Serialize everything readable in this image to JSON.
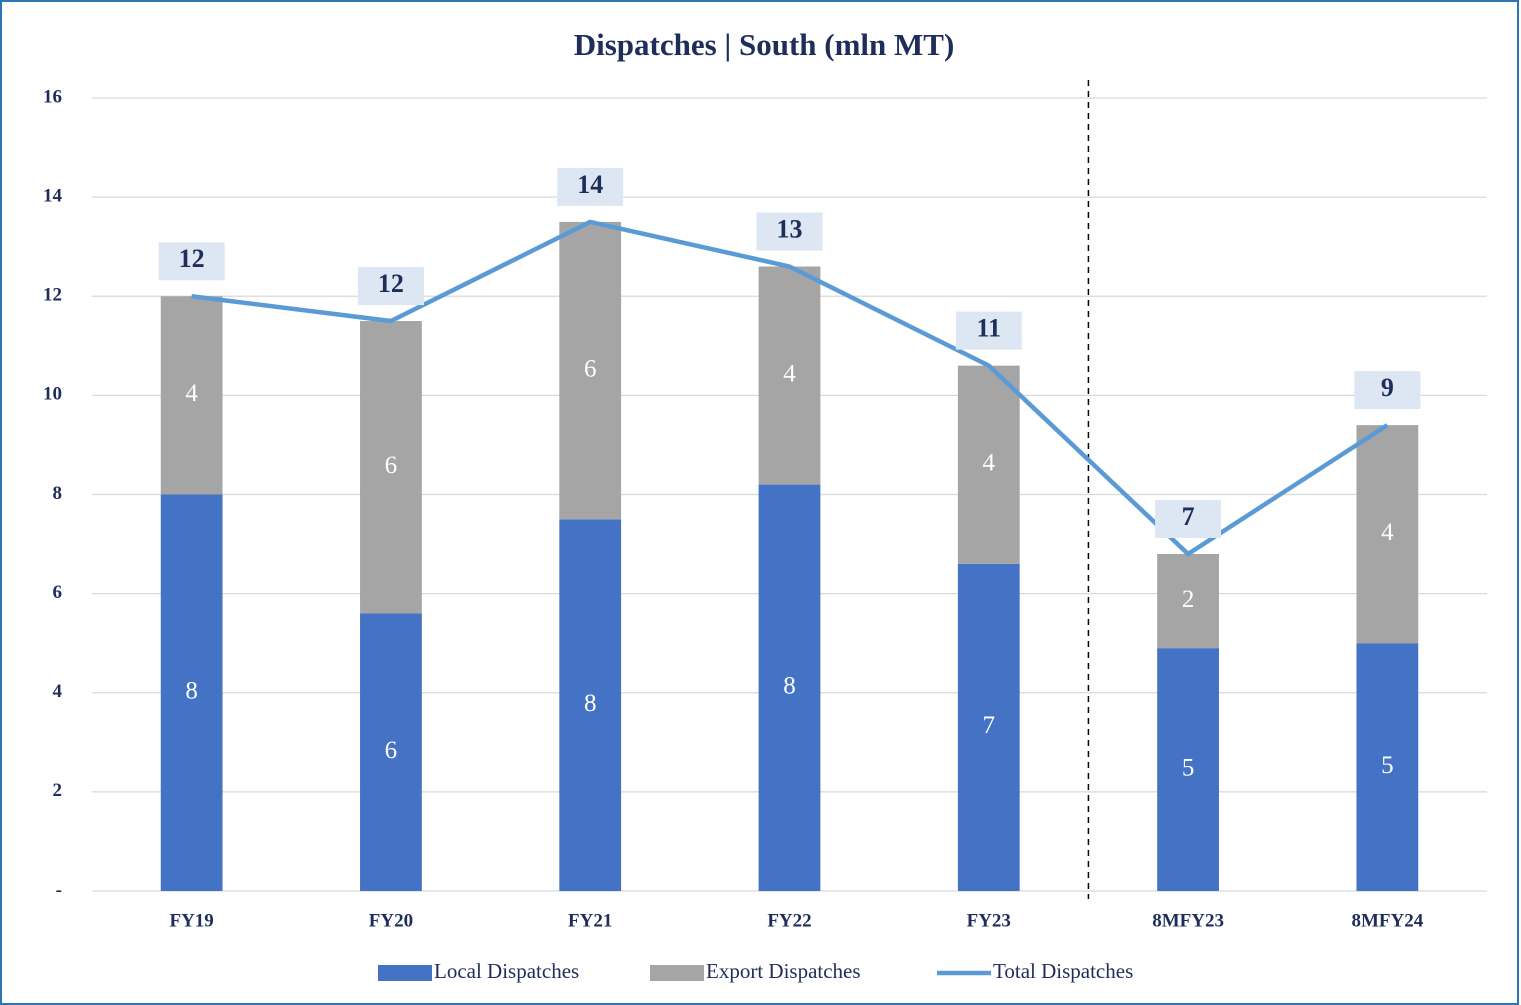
{
  "chart_data": {
    "type": "bar",
    "stacked": true,
    "title": "Dispatches | South (mln MT)",
    "categories": [
      "FY19",
      "FY20",
      "FY21",
      "FY22",
      "FY23",
      "8MFY23",
      "8MFY24"
    ],
    "series": [
      {
        "name": "Local Dispatches",
        "type": "bar",
        "color": "#4472c4",
        "values": [
          8.0,
          5.6,
          7.5,
          8.2,
          6.6,
          4.9,
          5.0
        ],
        "value_labels": [
          "8",
          "6",
          "8",
          "8",
          "7",
          "5",
          "5"
        ]
      },
      {
        "name": "Export Dispatches",
        "type": "bar",
        "color": "#a5a5a5",
        "values": [
          4.0,
          5.9,
          6.0,
          4.4,
          4.0,
          1.9,
          4.4
        ],
        "value_labels": [
          "4",
          "6",
          "6",
          "4",
          "4",
          "2",
          "4"
        ]
      },
      {
        "name": "Total Dispatches",
        "type": "line",
        "color": "#5b9bd5",
        "values": [
          12.0,
          11.5,
          13.5,
          12.6,
          10.6,
          6.8,
          9.4
        ],
        "value_labels": [
          "12",
          "12",
          "14",
          "13",
          "11",
          "7",
          "9"
        ]
      }
    ],
    "ylim": [
      0,
      16
    ],
    "yticks": [
      {
        "value": 0,
        "label": "-"
      },
      2,
      4,
      6,
      8,
      10,
      12,
      14,
      16
    ],
    "grid": true,
    "legend": "bottom"
  }
}
